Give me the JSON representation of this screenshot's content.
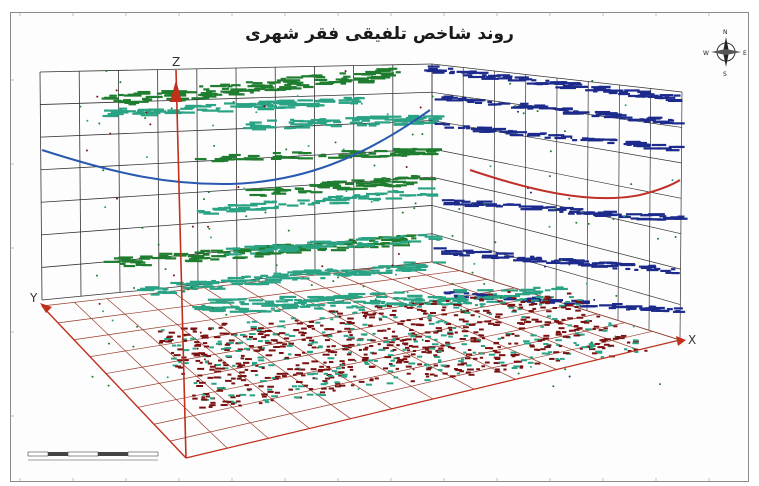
{
  "map": {
    "title": "روند شاخص تلفیقی فقر شهری",
    "axes": {
      "x": "X",
      "y": "Y",
      "z": "Z"
    },
    "north_arrow": {
      "n": "N",
      "s": "S",
      "e": "E",
      "w": "W"
    },
    "colors": {
      "frame": "#8a8a8a",
      "grid_back": "#333333",
      "grid_floor": "#9b3b2b",
      "layer_green": "#1e7d2e",
      "layer_teal": "#2aa384",
      "layer_blue": "#1c2a8c",
      "layer_red": "#7a1010",
      "trend_blue": "#2a5ab0",
      "trend_red": "#c0302a",
      "z_arrow": "#c0301c"
    }
  }
}
